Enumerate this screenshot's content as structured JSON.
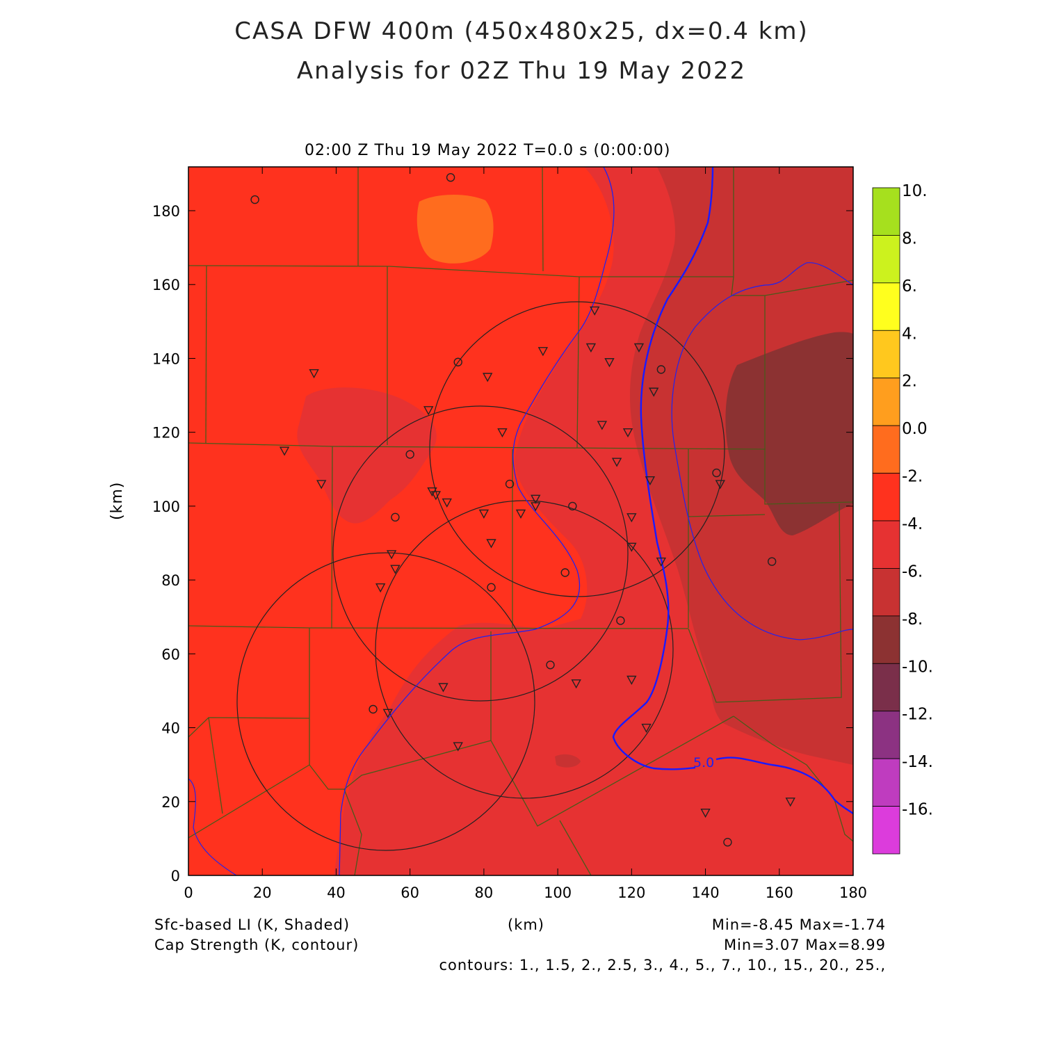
{
  "title_line1": "CASA DFW 400m (450x480x25, dx=0.4 km)",
  "title_line2": "Analysis for 02Z Thu 19 May 2022",
  "time_line": "02:00 Z Thu 19 May 2022    T=0.0 s (0:00:00)",
  "y_axis_label": "(km)",
  "x_axis_label": "(km)",
  "x_ticks": [
    "0",
    "20",
    "40",
    "60",
    "80",
    "100",
    "120",
    "140",
    "160",
    "180"
  ],
  "y_ticks": [
    "0",
    "20",
    "40",
    "60",
    "80",
    "100",
    "120",
    "140",
    "160",
    "180"
  ],
  "colorbar": {
    "labels": [
      "10.",
      "8.",
      "6.",
      "4.",
      "2.",
      "0.0",
      "-2.",
      "-4.",
      "-6.",
      "-8.",
      "-10.",
      "-12.",
      "-14.",
      "-16."
    ],
    "colors": [
      "#a6e01e",
      "#ccf21e",
      "#ffff1e",
      "#ffc81e",
      "#ff9e1e",
      "#ff6c1e",
      "#ff321e",
      "#e63232",
      "#c83232",
      "#8c3232",
      "#7a2f4a",
      "#8c3282",
      "#bf3cbf",
      "#dc3cdc"
    ]
  },
  "contour_label": "5.0",
  "footer": {
    "shaded_label": "Sfc-based LI (K, Shaded)",
    "contour_field": "Cap Strength (K, contour)",
    "minmax_shaded": "Min=-8.45 Max=-1.74",
    "minmax_contour": "Min=3.07 Max=8.99",
    "contours": "contours: 1., 1.5, 2., 2.5, 3., 4., 5., 7., 10., 15., 20., 25.,"
  },
  "map_colors": {
    "li_m4_to_m2": "#ff321e",
    "li_m6_to_m4": "#e63232",
    "li_m8_to_m6": "#c83232",
    "li_m10_to_m8": "#8c3232",
    "li_m2_to_0": "#ff6c1e",
    "county_lines": "#4a5a1a",
    "contour": "#2222ee"
  },
  "chart_data": {
    "type": "heatmap",
    "field_shaded": "Sfc-based LI (K)",
    "field_contour": "Cap Strength (K)",
    "xlim": [
      0,
      180
    ],
    "ylim": [
      0,
      192
    ],
    "shaded_min": -8.45,
    "shaded_max": -1.74,
    "contour_min": 3.07,
    "contour_max": 8.99,
    "radar_sites_km": [
      {
        "x": 105,
        "y": 116,
        "r": 39
      },
      {
        "x": 79,
        "y": 88,
        "r": 39
      },
      {
        "x": 91,
        "y": 62,
        "r": 39
      },
      {
        "x": 55,
        "y": 48,
        "r": 39
      }
    ],
    "circle_stations_km": [
      [
        18,
        183
      ],
      [
        71,
        189
      ],
      [
        73,
        139
      ],
      [
        60,
        114
      ],
      [
        56,
        97
      ],
      [
        87,
        106
      ],
      [
        104,
        100
      ],
      [
        102,
        82
      ],
      [
        82,
        78
      ],
      [
        117,
        69
      ],
      [
        98,
        57
      ],
      [
        50,
        45
      ],
      [
        128,
        137
      ],
      [
        143,
        109
      ],
      [
        158,
        85
      ],
      [
        146,
        9
      ]
    ],
    "triangle_stations_km": [
      [
        34,
        136
      ],
      [
        26,
        115
      ],
      [
        36,
        106
      ],
      [
        65,
        126
      ],
      [
        66,
        104
      ],
      [
        67,
        103
      ],
      [
        70,
        101
      ],
      [
        85,
        120
      ],
      [
        81,
        135
      ],
      [
        96,
        142
      ],
      [
        110,
        153
      ],
      [
        109,
        143
      ],
      [
        114,
        139
      ],
      [
        122,
        143
      ],
      [
        126,
        131
      ],
      [
        112,
        122
      ],
      [
        119,
        120
      ],
      [
        116,
        112
      ],
      [
        125,
        107
      ],
      [
        80,
        98
      ],
      [
        90,
        98
      ],
      [
        94,
        102
      ],
      [
        94,
        100
      ],
      [
        120,
        97
      ],
      [
        82,
        90
      ],
      [
        120,
        89
      ],
      [
        128,
        85
      ],
      [
        55,
        87
      ],
      [
        56,
        83
      ],
      [
        52,
        78
      ],
      [
        69,
        51
      ],
      [
        105,
        52
      ],
      [
        120,
        53
      ],
      [
        54,
        44
      ],
      [
        73,
        35
      ],
      [
        124,
        40
      ],
      [
        140,
        17
      ],
      [
        163,
        20
      ],
      [
        144,
        106
      ]
    ]
  }
}
